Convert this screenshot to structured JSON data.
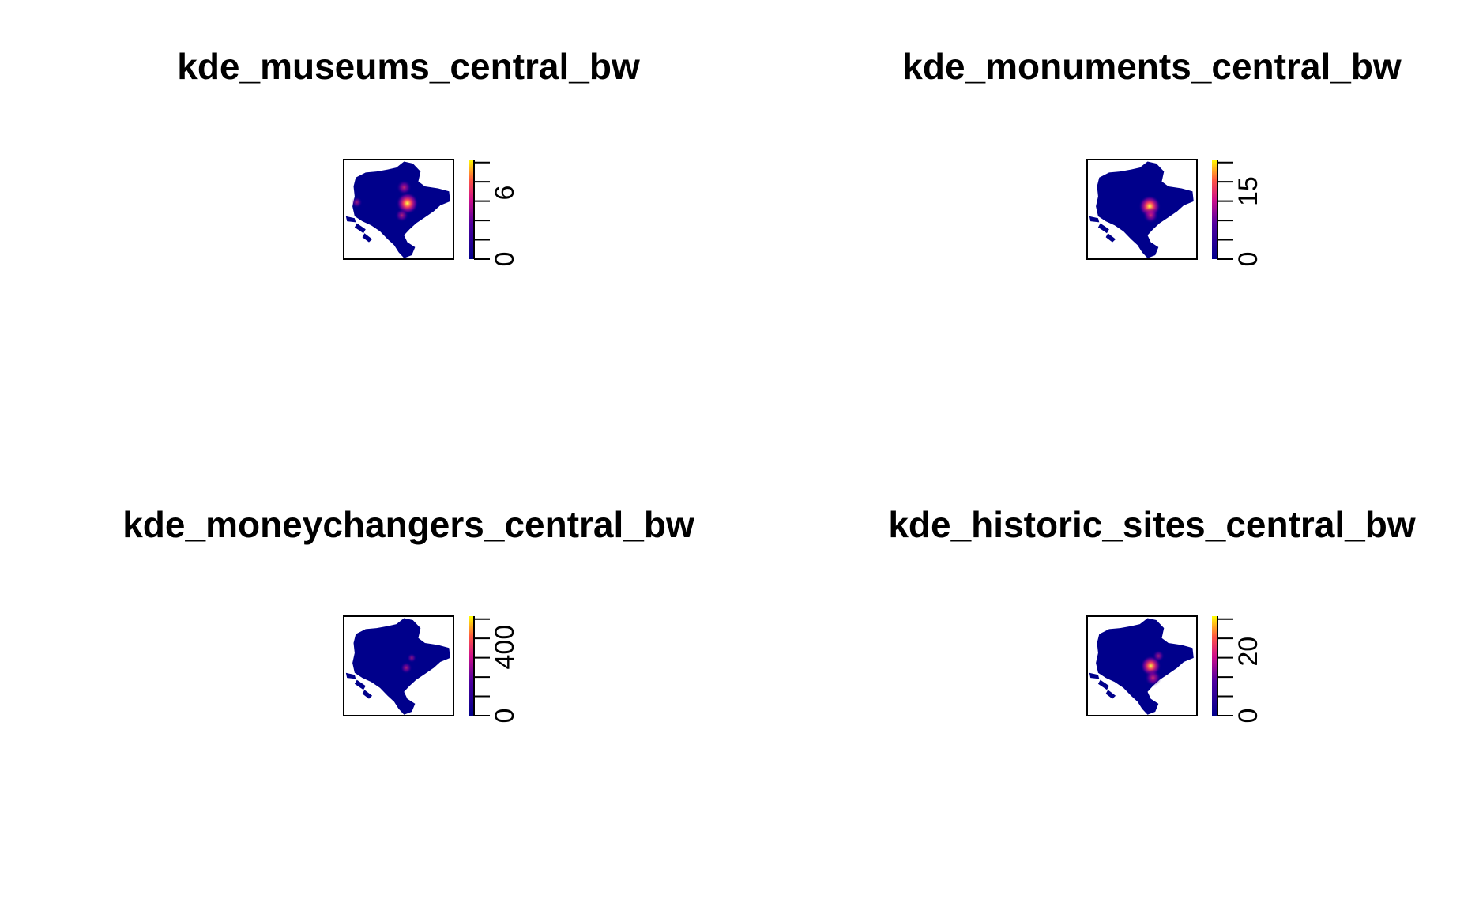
{
  "chart_data": [
    {
      "type": "heatmap",
      "title": "kde_museums_central_bw",
      "colorbar": {
        "ticks": [
          "0",
          "6"
        ],
        "tick_values": [
          0,
          6
        ],
        "max": 9
      },
      "hotspots": [
        {
          "u": 0.58,
          "v": 0.44,
          "weight": 1.0
        },
        {
          "u": 0.55,
          "v": 0.28,
          "weight": 0.55
        },
        {
          "u": 0.53,
          "v": 0.56,
          "weight": 0.45
        },
        {
          "u": 0.12,
          "v": 0.43,
          "weight": 0.3
        }
      ]
    },
    {
      "type": "heatmap",
      "title": "kde_monuments_central_bw",
      "colorbar": {
        "ticks": [
          "0",
          "15"
        ],
        "tick_values": [
          0,
          15
        ],
        "max": 22
      },
      "hotspots": [
        {
          "u": 0.57,
          "v": 0.47,
          "weight": 1.0
        },
        {
          "u": 0.58,
          "v": 0.56,
          "weight": 0.6
        }
      ]
    },
    {
      "type": "heatmap",
      "title": "kde_moneychangers_central_bw",
      "colorbar": {
        "ticks": [
          "0",
          "400"
        ],
        "tick_values": [
          0,
          400
        ],
        "max": 580
      },
      "hotspots": [
        {
          "u": 0.57,
          "v": 0.52,
          "weight": 0.35
        },
        {
          "u": 0.62,
          "v": 0.42,
          "weight": 0.2
        }
      ]
    },
    {
      "type": "heatmap",
      "title": "kde_historic_sites_central_bw",
      "colorbar": {
        "ticks": [
          "0",
          "20"
        ],
        "tick_values": [
          0,
          20
        ],
        "max": 31
      },
      "hotspots": [
        {
          "u": 0.58,
          "v": 0.5,
          "weight": 0.9
        },
        {
          "u": 0.6,
          "v": 0.62,
          "weight": 0.65
        },
        {
          "u": 0.65,
          "v": 0.4,
          "weight": 0.35
        }
      ]
    }
  ],
  "colors": {
    "low": "#00008b",
    "mid": "#c000a0",
    "high": "#ff4040",
    "top": "#ffff00"
  }
}
